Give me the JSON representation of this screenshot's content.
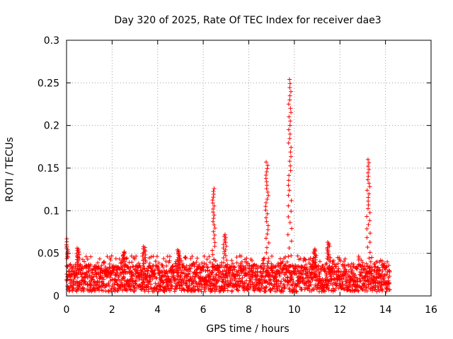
{
  "chart_data": {
    "type": "scatter",
    "title": "Day 320 of 2025, Rate Of TEC Index for receiver dae3",
    "xlabel": "GPS time / hours",
    "ylabel": "ROTI / TECUs",
    "xlim": [
      0,
      16
    ],
    "ylim": [
      0,
      0.3
    ],
    "x_ticks": [
      0,
      2,
      4,
      6,
      8,
      10,
      12,
      14,
      16
    ],
    "y_ticks": [
      0,
      0.05,
      0.1,
      0.15,
      0.2,
      0.25,
      0.3
    ],
    "x_tick_labels": [
      "0",
      "2",
      "4",
      "6",
      "8",
      "10",
      "12",
      "14",
      "16"
    ],
    "y_tick_labels": [
      "0",
      "0.05",
      "0.1",
      "0.15",
      "0.2",
      "0.25",
      "0.3"
    ],
    "grid": true,
    "marker": "+",
    "marker_color": "#ff0000",
    "data_x_range": [
      0,
      14.2
    ],
    "background_band": {
      "typical_min": 0.005,
      "typical_max": 0.035
    },
    "spikes": [
      {
        "x": 0.0,
        "peak": 0.067
      },
      {
        "x": 0.5,
        "peak": 0.056
      },
      {
        "x": 2.5,
        "peak": 0.052
      },
      {
        "x": 3.4,
        "peak": 0.058
      },
      {
        "x": 4.9,
        "peak": 0.054
      },
      {
        "x": 6.45,
        "peak": 0.126
      },
      {
        "x": 6.95,
        "peak": 0.072
      },
      {
        "x": 8.8,
        "peak": 0.157
      },
      {
        "x": 9.8,
        "peak": 0.254
      },
      {
        "x": 10.9,
        "peak": 0.055
      },
      {
        "x": 11.5,
        "peak": 0.063
      },
      {
        "x": 13.25,
        "peak": 0.16
      }
    ]
  }
}
